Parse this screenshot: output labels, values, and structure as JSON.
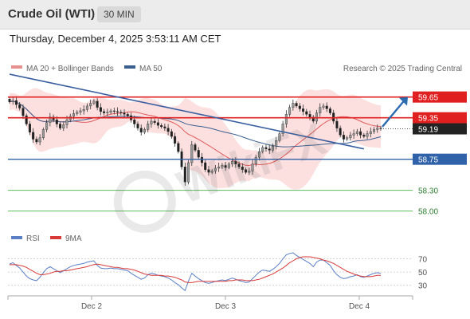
{
  "header": {
    "instrument": "Crude Oil (WTI)",
    "timeframe": "30 MIN"
  },
  "timestamp": "Thursday, December 4, 2025 3:53:11 AM CET",
  "legend": {
    "ma20": "MA 20 + Bollinger Bands",
    "ma50": "MA 50",
    "credit": "Research © 2025 Trading Central"
  },
  "rsi_legend": {
    "rsi": "RSI",
    "ma9": "9MA"
  },
  "colors": {
    "bull": "#6e6e6e",
    "bear": "#1e1e1e",
    "ma20": "#e05a5a",
    "ma50": "#3a5f8f",
    "bb_fill": "#fbd5d5",
    "resistance": "#e02020",
    "support": "#2f62a8",
    "minor": "#5cb85c",
    "rsi": "#5b7fc4",
    "rsi_ma": "#d83a3a",
    "arrow": "#2b6cb0"
  },
  "chart_data": [
    {
      "type": "candlestick",
      "title": "",
      "x_ticks": [
        "Dec 2",
        "Dec 3",
        "Dec 4"
      ],
      "ylim": [
        57.8,
        59.9
      ],
      "closes": [
        59.58,
        59.6,
        59.54,
        59.49,
        59.38,
        59.26,
        59.14,
        59.04,
        59.0,
        59.06,
        59.18,
        59.28,
        59.36,
        59.32,
        59.26,
        59.2,
        59.25,
        59.32,
        59.37,
        59.41,
        59.43,
        59.45,
        59.47,
        59.52,
        59.56,
        59.59,
        59.5,
        59.44,
        59.42,
        59.43,
        59.45,
        59.44,
        59.43,
        59.42,
        59.4,
        59.38,
        59.32,
        59.26,
        59.2,
        59.14,
        59.18,
        59.26,
        59.3,
        59.28,
        59.24,
        59.22,
        59.2,
        59.15,
        59.08,
        58.98,
        58.86,
        58.64,
        58.42,
        58.7,
        58.96,
        58.88,
        58.78,
        58.7,
        58.6,
        58.56,
        58.58,
        58.62,
        58.64,
        58.66,
        58.63,
        58.68,
        58.72,
        58.68,
        58.64,
        58.6,
        58.56,
        58.58,
        58.68,
        58.78,
        58.86,
        58.92,
        58.9,
        58.88,
        58.94,
        59.02,
        59.12,
        59.26,
        59.4,
        59.5,
        59.56,
        59.52,
        59.48,
        59.44,
        59.4,
        59.36,
        59.3,
        59.42,
        59.5,
        59.52,
        59.48,
        59.42,
        59.3,
        59.2,
        59.1,
        59.04,
        59.06,
        59.1,
        59.12,
        59.15,
        59.1,
        59.08,
        59.12,
        59.15,
        59.18,
        59.2,
        59.19
      ],
      "levels": [
        {
          "label": "59.65",
          "value": 59.65,
          "kind": "resistance"
        },
        {
          "label": "59.35",
          "value": 59.35,
          "kind": "resistance"
        },
        {
          "label": "59.19",
          "value": 59.19,
          "kind": "last"
        },
        {
          "label": "58.75",
          "value": 58.75,
          "kind": "support"
        },
        {
          "label": "58.30",
          "value": 58.3,
          "kind": "minor"
        },
        {
          "label": "58.00",
          "value": 58.0,
          "kind": "minor"
        }
      ],
      "trendline": {
        "from": {
          "i": 0,
          "value": 59.98
        },
        "to": {
          "i": 105,
          "value": 58.9
        }
      },
      "projection": {
        "from": 59.22,
        "to": 59.65
      }
    },
    {
      "type": "line",
      "title": "",
      "ylim": [
        20,
        85
      ],
      "y_ticks": [
        70,
        50,
        30
      ],
      "series": [
        {
          "name": "RSI",
          "values": [
            62,
            64,
            60,
            56,
            50,
            44,
            40,
            38,
            37,
            42,
            49,
            55,
            58,
            55,
            52,
            49,
            52,
            55,
            58,
            60,
            61,
            62,
            63,
            65,
            66,
            67,
            60,
            56,
            55,
            55,
            56,
            55,
            55,
            54,
            53,
            52,
            48,
            45,
            42,
            39,
            41,
            46,
            48,
            47,
            45,
            44,
            43,
            41,
            38,
            34,
            31,
            26,
            22,
            36,
            48,
            44,
            40,
            37,
            34,
            33,
            34,
            36,
            37,
            38,
            37,
            39,
            41,
            39,
            37,
            36,
            34,
            35,
            40,
            45,
            50,
            53,
            52,
            51,
            54,
            58,
            63,
            70,
            76,
            78,
            79,
            75,
            72,
            69,
            66,
            63,
            58,
            65,
            68,
            68,
            64,
            60,
            52,
            46,
            42,
            40,
            41,
            43,
            44,
            46,
            43,
            42,
            44,
            46,
            48,
            49,
            48
          ]
        },
        {
          "name": "9MA",
          "values": [
            61,
            61,
            61,
            60,
            59,
            57,
            54,
            51,
            48,
            46,
            46,
            47,
            48,
            50,
            51,
            51,
            52,
            52,
            53,
            54,
            55,
            56,
            57,
            58,
            60,
            61,
            62,
            61,
            60,
            59,
            58,
            57,
            57,
            56,
            55,
            55,
            54,
            53,
            51,
            49,
            47,
            46,
            45,
            45,
            45,
            45,
            44,
            44,
            43,
            42,
            40,
            38,
            35,
            34,
            34,
            35,
            36,
            36,
            36,
            36,
            36,
            36,
            36,
            36,
            36,
            37,
            37,
            38,
            38,
            38,
            37,
            37,
            37,
            38,
            39,
            41,
            43,
            45,
            47,
            50,
            53,
            56,
            60,
            64,
            67,
            70,
            72,
            73,
            73,
            73,
            72,
            71,
            70,
            68,
            67,
            65,
            63,
            60,
            57,
            54,
            51,
            49,
            47,
            45,
            44,
            43,
            43,
            43,
            44,
            45,
            45
          ]
        }
      ]
    }
  ]
}
